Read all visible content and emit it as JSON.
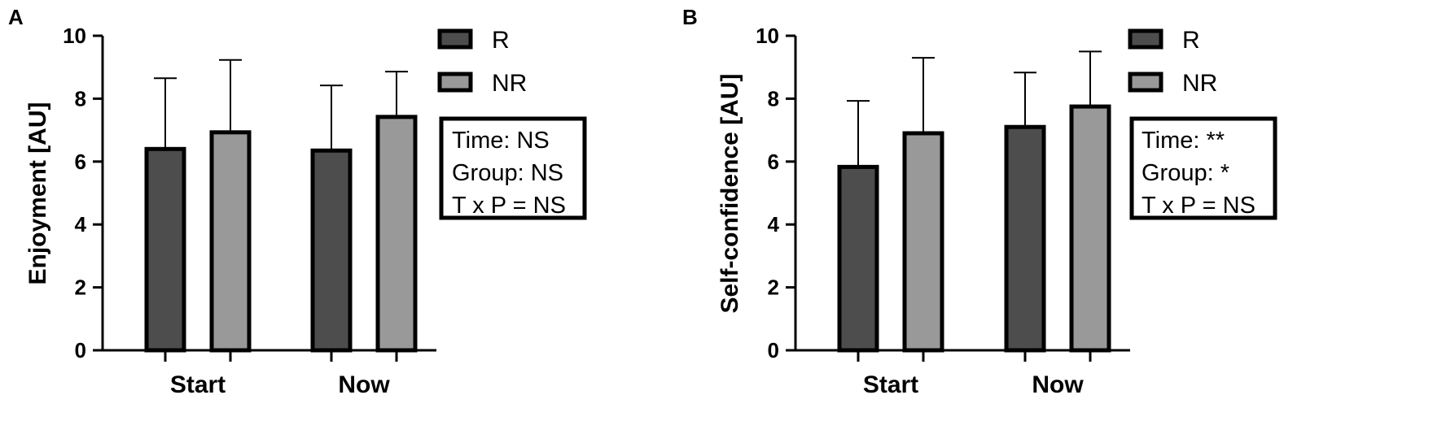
{
  "chart_data": [
    {
      "type": "bar",
      "panel": "A",
      "ylabel": "Enjoyment [AU]",
      "ylim": [
        0,
        10
      ],
      "yticks": [
        0,
        2,
        4,
        6,
        8,
        10
      ],
      "categories": [
        "Start",
        "Now"
      ],
      "series": [
        {
          "name": "R",
          "color": "#4d4d4d",
          "values": [
            6.4,
            6.35
          ],
          "error_upper": [
            8.65,
            8.42
          ]
        },
        {
          "name": "NR",
          "color": "#999999",
          "values": [
            6.93,
            7.42
          ],
          "error_upper": [
            9.23,
            8.86
          ]
        }
      ],
      "annotations": [
        "Time: NS",
        "Group: NS",
        "T x P = NS"
      ]
    },
    {
      "type": "bar",
      "panel": "B",
      "ylabel": "Self-confidence [AU]",
      "ylim": [
        0,
        10
      ],
      "yticks": [
        0,
        2,
        4,
        6,
        8,
        10
      ],
      "categories": [
        "Start",
        "Now"
      ],
      "series": [
        {
          "name": "R",
          "color": "#4d4d4d",
          "values": [
            5.83,
            7.1
          ],
          "error_upper": [
            7.93,
            8.83
          ]
        },
        {
          "name": "NR",
          "color": "#999999",
          "values": [
            6.9,
            7.75
          ],
          "error_upper": [
            9.3,
            9.5
          ]
        }
      ],
      "annotations": [
        "Time: **",
        "Group: *",
        "T x P = NS"
      ]
    }
  ]
}
